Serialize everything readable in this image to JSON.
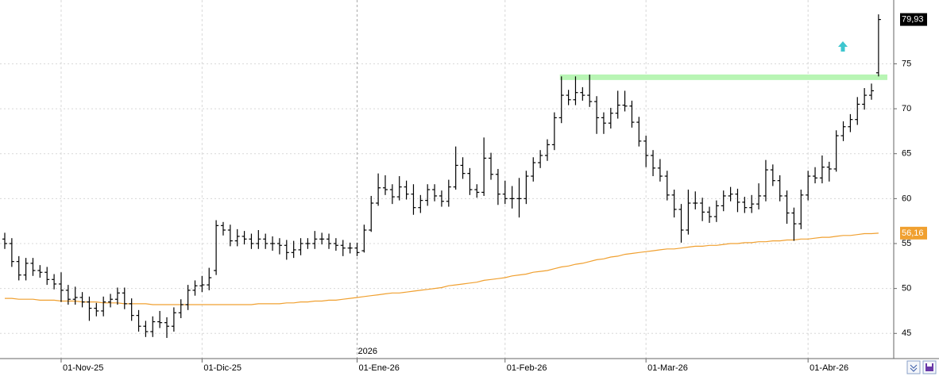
{
  "chart_data": {
    "type": "ohlc",
    "categories": [
      null,
      null,
      null,
      null,
      null,
      null,
      null,
      null,
      "01-Nov-25",
      null,
      null,
      null,
      null,
      null,
      null,
      null,
      null,
      null,
      null,
      null,
      null,
      null,
      null,
      null,
      null,
      null,
      null,
      null,
      "01-Dic-25",
      null,
      null,
      null,
      null,
      null,
      null,
      null,
      null,
      null,
      null,
      null,
      null,
      null,
      null,
      null,
      null,
      null,
      null,
      null,
      null,
      null,
      "01-Ene-26",
      null,
      null,
      null,
      null,
      null,
      null,
      null,
      null,
      null,
      null,
      null,
      null,
      null,
      null,
      null,
      null,
      null,
      null,
      null,
      null,
      "01-Feb-26",
      null,
      null,
      null,
      null,
      null,
      null,
      null,
      null,
      null,
      null,
      null,
      null,
      null,
      null,
      null,
      null,
      null,
      null,
      null,
      "01-Mar-26",
      null,
      null,
      null,
      null,
      null,
      null,
      null,
      null,
      null,
      null,
      null,
      null,
      null,
      null,
      null,
      null,
      null,
      null,
      null,
      null,
      null,
      null,
      "01-Abr-26",
      null,
      null,
      null,
      null,
      null,
      null,
      null,
      null,
      null,
      null
    ],
    "open": [
      55.5,
      55,
      53,
      51.5,
      52.8,
      52,
      51.8,
      51,
      50.5,
      49.8,
      48.8,
      49,
      48.5,
      47.8,
      47.5,
      48.5,
      48.8,
      49.5,
      48.3,
      47,
      45.8,
      45.2,
      46.3,
      46.2,
      45.8,
      47.3,
      48.2,
      49.8,
      50.3,
      50.4,
      52,
      57,
      56.5,
      55.3,
      55.8,
      55.5,
      55,
      55.5,
      55,
      55,
      54.8,
      54,
      54.3,
      55,
      55,
      55.5,
      55.5,
      55,
      54.8,
      54.5,
      54.5,
      54.2,
      56.5,
      59.5,
      61.2,
      61,
      60.2,
      61.3,
      60.5,
      59,
      59.8,
      61,
      60.3,
      59.7,
      61.3,
      63.7,
      62.8,
      61,
      60.7,
      64.5,
      62.7,
      60.5,
      60,
      60,
      60,
      62.5,
      64,
      64.8,
      66,
      69,
      71.5,
      71,
      71.8,
      71.5,
      70.8,
      69,
      68.4,
      69.5,
      70.4,
      70.3,
      68.5,
      66.4,
      64.8,
      63.4,
      62.5,
      60.4,
      58.8,
      56.5,
      59.5,
      59.5,
      58.5,
      58,
      59.2,
      60.3,
      60.5,
      59.6,
      59,
      59.4,
      60.3,
      63.2,
      62,
      60.3,
      58.4,
      57.2,
      60.4,
      62.5,
      62.3,
      63.5,
      63.3,
      67,
      68,
      68.8,
      70.5,
      71.5,
      74
    ],
    "high": [
      56.2,
      55.6,
      53.6,
      53.4,
      53.4,
      52.6,
      52.4,
      51.6,
      51.8,
      50.4,
      50.2,
      49.6,
      49.1,
      48.4,
      49.1,
      49.4,
      50.1,
      50.1,
      48.9,
      47.6,
      46.4,
      46.9,
      47.5,
      46.8,
      47.9,
      48.8,
      50.4,
      50.9,
      51.4,
      52.3,
      57.6,
      57.4,
      57.1,
      56.6,
      56.4,
      56.1,
      56.5,
      56.1,
      55.8,
      55.6,
      55.4,
      55.3,
      55.6,
      55.6,
      56.4,
      56.2,
      56.1,
      55.6,
      55.4,
      55.1,
      55.1,
      57.1,
      60.3,
      62.8,
      62.6,
      61.6,
      62.5,
      62,
      61.6,
      60.4,
      61.6,
      61.6,
      60.9,
      62.1,
      65.8,
      64.6,
      63.4,
      61.6,
      66.8,
      65.1,
      63.3,
      62,
      61.4,
      62.3,
      63.1,
      64.6,
      65.4,
      66.6,
      69.6,
      73.6,
      72.1,
      73.6,
      72.4,
      73.8,
      71.4,
      69.6,
      70.1,
      72,
      72,
      70.9,
      69.1,
      67,
      65.4,
      64.4,
      63.1,
      61,
      59.4,
      61,
      60.8,
      60.1,
      59.1,
      59.8,
      60.9,
      61.3,
      61.1,
      60.2,
      60.4,
      61.7,
      64.3,
      63.8,
      62.6,
      60.9,
      59,
      61,
      63.1,
      63.5,
      64.8,
      64.1,
      67.6,
      68.6,
      69.4,
      71.3,
      72.3,
      72.8,
      80.5
    ],
    "low": [
      54.4,
      52.4,
      50.9,
      50.9,
      51.4,
      51.2,
      50.4,
      49.9,
      48.5,
      48.2,
      48.2,
      47.9,
      46.4,
      46.9,
      46.9,
      47.9,
      48.2,
      47.7,
      46.4,
      45.2,
      44.6,
      44.6,
      45.6,
      44.5,
      45.2,
      46.7,
      47.6,
      49.2,
      49.6,
      49.8,
      51.5,
      55.9,
      54.7,
      54.7,
      54.9,
      54.4,
      54.4,
      54.4,
      54.2,
      53.8,
      53.2,
      53.4,
      53.7,
      54.4,
      54.4,
      54.9,
      54.4,
      54.2,
      53.6,
      53.9,
      53.6,
      54,
      56.3,
      59.2,
      60.4,
      59.4,
      59.8,
      59.9,
      58.2,
      58.4,
      59.2,
      59.7,
      59.1,
      59.1,
      61,
      62.2,
      60.4,
      60.1,
      60.3,
      62.1,
      59.3,
      59.4,
      58.9,
      57.9,
      59.4,
      61.9,
      63.4,
      64.2,
      65.4,
      68.4,
      70.4,
      70.4,
      70.9,
      70.2,
      67.2,
      67.2,
      67.8,
      68.9,
      69.7,
      67.9,
      65.8,
      63.5,
      62.5,
      61.9,
      59.8,
      57.9,
      55.1,
      56,
      58.8,
      57.5,
      57.3,
      57.4,
      58.6,
      59.7,
      58.5,
      58.4,
      58.4,
      58.8,
      59.7,
      61.4,
      59.7,
      57.2,
      55.3,
      56.6,
      59.8,
      61.7,
      61.7,
      61.9,
      63,
      66.4,
      67.4,
      68.2,
      69.9,
      71,
      73.6
    ],
    "close": [
      55,
      53,
      51.5,
      52.8,
      52,
      51.8,
      51,
      50.5,
      49.8,
      48.8,
      49,
      48.5,
      47.8,
      47.5,
      48.5,
      48.8,
      49.5,
      48.3,
      47,
      45.8,
      45.2,
      46.3,
      46.2,
      45.8,
      47.3,
      48.2,
      49.8,
      50.3,
      50.4,
      51.2,
      57,
      56.5,
      55.3,
      55.8,
      55.5,
      55,
      55.5,
      55,
      55,
      54.8,
      54,
      54.3,
      55,
      55,
      55.5,
      55.5,
      55,
      54.8,
      54.5,
      54.5,
      54,
      56.5,
      59.5,
      61.2,
      61,
      60.2,
      61.3,
      60.5,
      59,
      59.8,
      61,
      60.3,
      59.7,
      61.3,
      63.7,
      62.8,
      61,
      60.7,
      64.5,
      62.7,
      60.5,
      60,
      60,
      60,
      62.5,
      64,
      64.8,
      66,
      69,
      71.5,
      71,
      71.8,
      71.5,
      70.8,
      69,
      68.4,
      69.5,
      70.4,
      70.3,
      68.5,
      66.4,
      64.8,
      63.4,
      62.5,
      60.4,
      58.8,
      56.5,
      59.5,
      59.5,
      58.5,
      58,
      59.2,
      60.3,
      60.5,
      59.6,
      59,
      59.4,
      60.3,
      63.2,
      62,
      60.3,
      58.4,
      57.2,
      60.4,
      62.5,
      62.3,
      63.5,
      63.3,
      67,
      68,
      68.8,
      70.5,
      71.5,
      72,
      79.93
    ],
    "close_label": "79,93",
    "color": "#000000",
    "moving_average": {
      "color": "#f0a030",
      "values": [
        48.9,
        48.9,
        48.8,
        48.8,
        48.8,
        48.7,
        48.7,
        48.7,
        48.6,
        48.6,
        48.6,
        48.5,
        48.5,
        48.5,
        48.4,
        48.4,
        48.4,
        48.3,
        48.3,
        48.3,
        48.3,
        48.2,
        48.2,
        48.2,
        48.2,
        48.2,
        48.2,
        48.2,
        48.2,
        48.2,
        48.2,
        48.2,
        48.2,
        48.2,
        48.2,
        48.2,
        48.3,
        48.3,
        48.3,
        48.3,
        48.4,
        48.4,
        48.5,
        48.5,
        48.6,
        48.6,
        48.7,
        48.7,
        48.8,
        48.9,
        49,
        49.1,
        49.2,
        49.3,
        49.4,
        49.5,
        49.5,
        49.6,
        49.7,
        49.8,
        49.9,
        50,
        50.1,
        50.3,
        50.4,
        50.5,
        50.6,
        50.7,
        50.9,
        51,
        51.1,
        51.2,
        51.4,
        51.5,
        51.6,
        51.8,
        51.9,
        52,
        52.2,
        52.4,
        52.5,
        52.7,
        52.8,
        53,
        53.2,
        53.3,
        53.5,
        53.6,
        53.8,
        53.9,
        54,
        54.1,
        54.2,
        54.3,
        54.4,
        54.4,
        54.5,
        54.6,
        54.7,
        54.7,
        54.8,
        54.8,
        54.9,
        55,
        55,
        55.1,
        55.1,
        55.2,
        55.2,
        55.3,
        55.3,
        55.4,
        55.4,
        55.5,
        55.5,
        55.6,
        55.7,
        55.7,
        55.8,
        55.9,
        55.9,
        56,
        56.1,
        56.1,
        56.16
      ],
      "last_label": "56,16"
    },
    "resistance": {
      "value": 73.5,
      "color": "#b8f5b4"
    },
    "year_marker": "2026",
    "ylim": [
      42.2,
      82.1
    ],
    "yticks": [
      45,
      50,
      55,
      60,
      65,
      70,
      75
    ],
    "grid": true
  }
}
